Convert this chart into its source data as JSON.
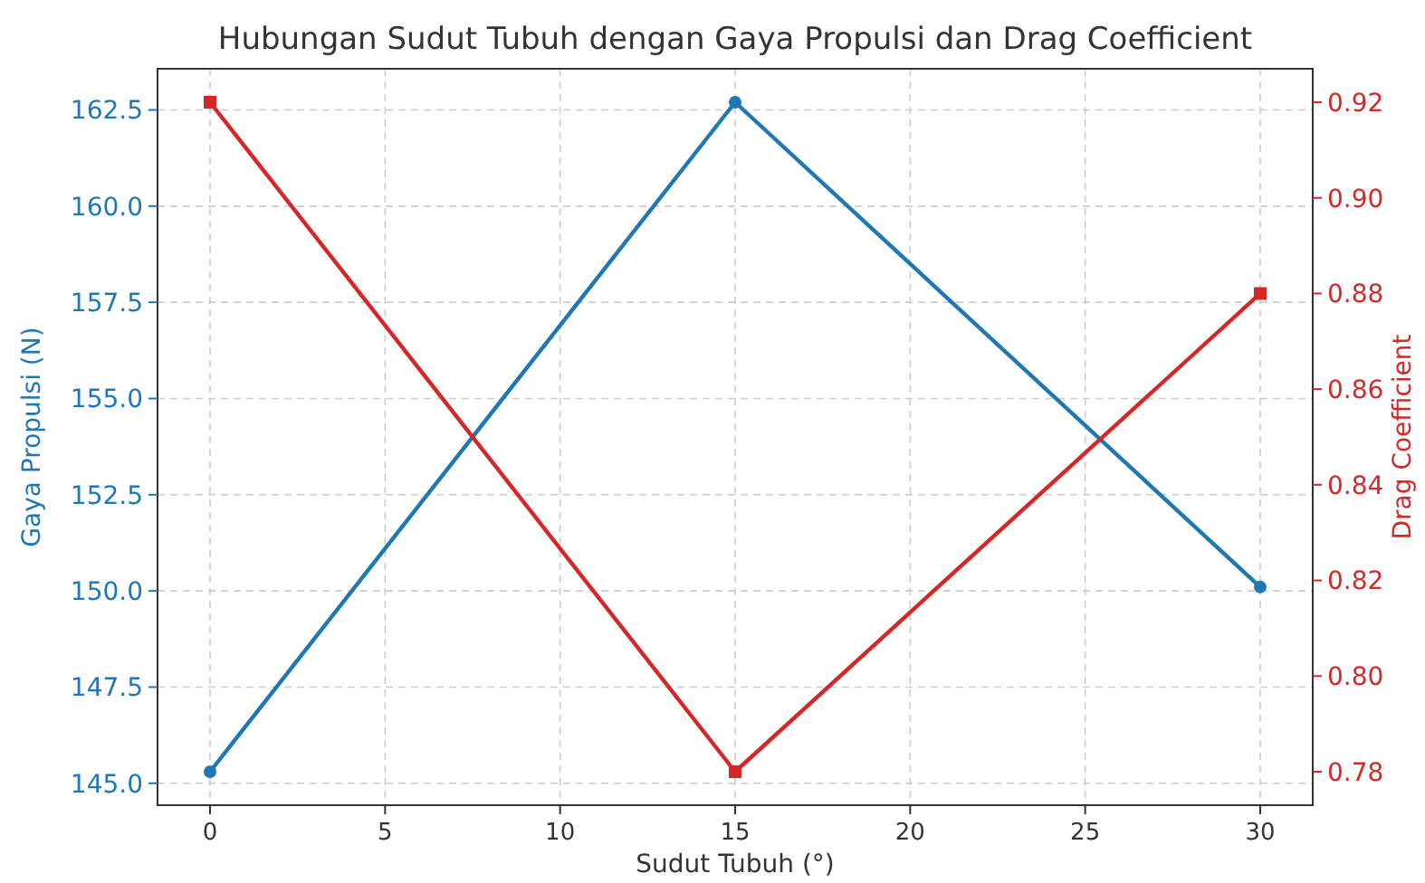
{
  "chart_data": {
    "type": "line",
    "title": "Hubungan Sudut Tubuh dengan Gaya Propulsi dan Drag Coefficient",
    "xlabel": "Sudut Tubuh (°)",
    "ylabel": "Gaya Propulsi (N)",
    "y2label": "Drag Coefficient",
    "x": [
      0,
      15,
      30
    ],
    "series": [
      {
        "color": "#1f77b4",
        "values": [
          145.3,
          162.7,
          150.1
        ],
        "marker": "circle"
      },
      {
        "color": "#d62728",
        "values": [
          0.92,
          0.78,
          0.88
        ],
        "marker": "square",
        "axis": "y2"
      }
    ],
    "xlim": [
      -1.5,
      31.5
    ],
    "xticks": [
      0,
      5,
      10,
      15,
      20,
      25,
      30
    ],
    "ylim": [
      144.43,
      163.57
    ],
    "yticks": [
      {
        "value": 145,
        "label": "145.0"
      },
      {
        "value": 147.5,
        "label": "147.5"
      },
      {
        "value": 150,
        "label": "150.0"
      },
      {
        "value": 152.5,
        "label": "152.5"
      },
      {
        "value": 155,
        "label": "155.0"
      },
      {
        "value": 157.5,
        "label": "157.5"
      },
      {
        "value": 160,
        "label": "160.0"
      },
      {
        "value": 162.5,
        "label": "162.5"
      }
    ],
    "y2lim": [
      0.773,
      0.927
    ],
    "y2ticks": [
      {
        "value": 0.78,
        "label": "0.78"
      },
      {
        "value": 0.8,
        "label": "0.80"
      },
      {
        "value": 0.82,
        "label": "0.82"
      },
      {
        "value": 0.84,
        "label": "0.84"
      },
      {
        "value": 0.86,
        "label": "0.86"
      },
      {
        "value": 0.88,
        "label": "0.88"
      },
      {
        "value": 0.9,
        "label": "0.90"
      },
      {
        "value": 0.92,
        "label": "0.92"
      }
    ],
    "grid": true
  }
}
